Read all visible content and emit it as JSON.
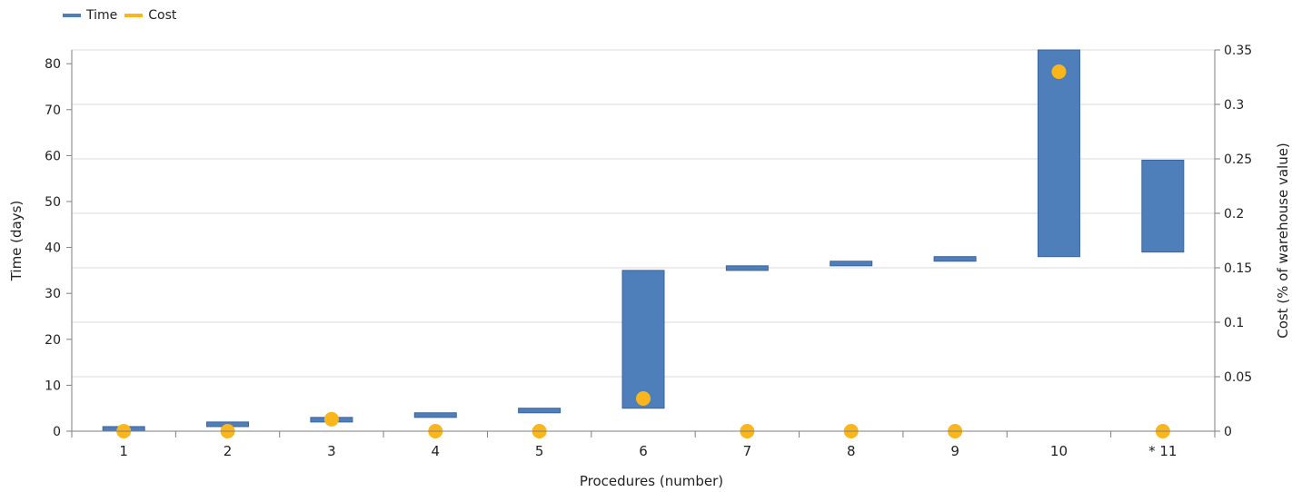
{
  "legend": {
    "time_label": "Time",
    "cost_label": "Cost"
  },
  "colors": {
    "time": "#4f7fbb",
    "time_stroke": "#3a64a0",
    "cost": "#fbb61c",
    "grid": "#d9d9d9",
    "axis": "#7f7f7f"
  },
  "chart_data": {
    "type": "floating-bar-with-scatter",
    "xlabel": "Procedures (number)",
    "ylabel_left": "Time (days)",
    "ylabel_right": "Cost (% of warehouse value)",
    "categories": [
      "1",
      "2",
      "3",
      "4",
      "5",
      "6",
      "7",
      "8",
      "9",
      "10",
      "* 11"
    ],
    "ylim_left": [
      0,
      83
    ],
    "yticks_left": [
      0,
      10,
      20,
      30,
      40,
      50,
      60,
      70,
      80
    ],
    "ylim_right": [
      0,
      0.35
    ],
    "yticks_right": [
      "0",
      "0.05",
      "0.1",
      "0.15",
      "0.2",
      "0.25",
      "0.3",
      "0.35"
    ],
    "grid": "horizontal",
    "legend_position": "top-left",
    "series": [
      {
        "name": "Time",
        "kind": "floating-bar",
        "axis": "left",
        "ranges": [
          [
            0,
            1
          ],
          [
            1,
            2
          ],
          [
            2,
            3
          ],
          [
            3,
            4
          ],
          [
            4,
            5
          ],
          [
            5,
            35
          ],
          [
            35,
            36
          ],
          [
            36,
            37
          ],
          [
            37,
            38
          ],
          [
            38,
            83
          ],
          [
            39,
            59
          ]
        ]
      },
      {
        "name": "Cost",
        "kind": "scatter",
        "axis": "right",
        "values": [
          0,
          0,
          0.011,
          0,
          0,
          0.03,
          0,
          0,
          0,
          0.33,
          0
        ]
      }
    ]
  }
}
